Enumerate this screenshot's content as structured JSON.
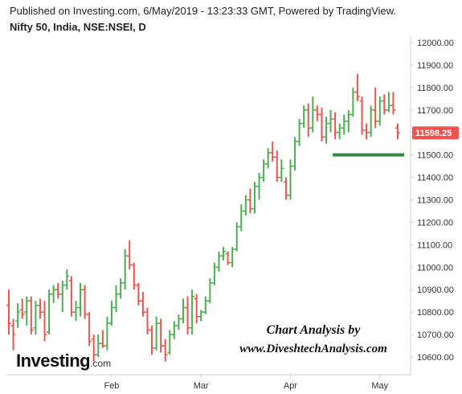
{
  "header": {
    "published": "Published on Investing.com, 6/May/2019 - 13:23:33 GMT, Powered by TradingView.",
    "instrument": "Nifty 50, India, NSE:NSEI, D"
  },
  "logo": {
    "name": "Investing",
    "suffix": ".com"
  },
  "watermark": {
    "line1": "Chart Analysis by",
    "line2": "www.DiveshtechAnalysis.com"
  },
  "colors": {
    "up": "#4caf50",
    "down": "#ef5350",
    "support": "#2e8b3a",
    "price_badge": "#ef5350"
  },
  "chart_data": {
    "type": "ohlc-bar",
    "y_ticks": [
      "12000.00",
      "11900.00",
      "11800.00",
      "11700.00",
      "11600.00",
      "11500.00",
      "11400.00",
      "11300.00",
      "11200.00",
      "11100.00",
      "11000.00",
      "10900.00",
      "10800.00",
      "10700.00",
      "10600.00"
    ],
    "ylim": [
      10550,
      12020
    ],
    "x_ticks": [
      {
        "label": "Feb",
        "index": 23
      },
      {
        "label": "Mar",
        "index": 43
      },
      {
        "label": "Apr",
        "index": 63
      },
      {
        "label": "May",
        "index": 83
      }
    ],
    "last_price": "11598.25",
    "support_level": {
      "value": 11500,
      "from_index": 73,
      "to_index": 87
    },
    "bars": [
      {
        "o": 10830,
        "h": 10900,
        "l": 10700,
        "c": 10750
      },
      {
        "o": 10740,
        "h": 10770,
        "l": 10630,
        "c": 10700
      },
      {
        "o": 10760,
        "h": 10840,
        "l": 10730,
        "c": 10800
      },
      {
        "o": 10810,
        "h": 10860,
        "l": 10770,
        "c": 10790
      },
      {
        "o": 10800,
        "h": 10870,
        "l": 10740,
        "c": 10850
      },
      {
        "o": 10850,
        "h": 10870,
        "l": 10700,
        "c": 10720
      },
      {
        "o": 10730,
        "h": 10850,
        "l": 10700,
        "c": 10830
      },
      {
        "o": 10830,
        "h": 10860,
        "l": 10770,
        "c": 10800
      },
      {
        "o": 10800,
        "h": 10850,
        "l": 10670,
        "c": 10700
      },
      {
        "o": 10710,
        "h": 10900,
        "l": 10700,
        "c": 10880
      },
      {
        "o": 10880,
        "h": 10920,
        "l": 10840,
        "c": 10900
      },
      {
        "o": 10900,
        "h": 10930,
        "l": 10860,
        "c": 10880
      },
      {
        "o": 10880,
        "h": 10940,
        "l": 10800,
        "c": 10920
      },
      {
        "o": 10920,
        "h": 10990,
        "l": 10900,
        "c": 10960
      },
      {
        "o": 10940,
        "h": 10960,
        "l": 10780,
        "c": 10800
      },
      {
        "o": 10800,
        "h": 10850,
        "l": 10760,
        "c": 10820
      },
      {
        "o": 10820,
        "h": 10930,
        "l": 10780,
        "c": 10900
      },
      {
        "o": 10900,
        "h": 10920,
        "l": 10770,
        "c": 10790
      },
      {
        "o": 10790,
        "h": 10800,
        "l": 10650,
        "c": 10670
      },
      {
        "o": 10680,
        "h": 10700,
        "l": 10580,
        "c": 10610
      },
      {
        "o": 10610,
        "h": 10700,
        "l": 10600,
        "c": 10660
      },
      {
        "o": 10660,
        "h": 10720,
        "l": 10640,
        "c": 10650
      },
      {
        "o": 10650,
        "h": 10780,
        "l": 10630,
        "c": 10750
      },
      {
        "o": 10750,
        "h": 10850,
        "l": 10740,
        "c": 10820
      },
      {
        "o": 10820,
        "h": 10920,
        "l": 10800,
        "c": 10880
      },
      {
        "o": 10880,
        "h": 10950,
        "l": 10860,
        "c": 10930
      },
      {
        "o": 10930,
        "h": 11080,
        "l": 10900,
        "c": 11050
      },
      {
        "o": 11050,
        "h": 11120,
        "l": 10990,
        "c": 11010
      },
      {
        "o": 11010,
        "h": 11020,
        "l": 10900,
        "c": 10920
      },
      {
        "o": 10920,
        "h": 10930,
        "l": 10830,
        "c": 10850
      },
      {
        "o": 10850,
        "h": 10890,
        "l": 10780,
        "c": 10800
      },
      {
        "o": 10800,
        "h": 10820,
        "l": 10700,
        "c": 10720
      },
      {
        "o": 10720,
        "h": 10740,
        "l": 10610,
        "c": 10640
      },
      {
        "o": 10640,
        "h": 10780,
        "l": 10630,
        "c": 10750
      },
      {
        "o": 10750,
        "h": 10770,
        "l": 10620,
        "c": 10650
      },
      {
        "o": 10650,
        "h": 10680,
        "l": 10580,
        "c": 10610
      },
      {
        "o": 10620,
        "h": 10720,
        "l": 10610,
        "c": 10700
      },
      {
        "o": 10700,
        "h": 10760,
        "l": 10680,
        "c": 10740
      },
      {
        "o": 10740,
        "h": 10790,
        "l": 10720,
        "c": 10770
      },
      {
        "o": 10770,
        "h": 10860,
        "l": 10750,
        "c": 10820
      },
      {
        "o": 10820,
        "h": 10870,
        "l": 10700,
        "c": 10730
      },
      {
        "o": 10730,
        "h": 10900,
        "l": 10700,
        "c": 10870
      },
      {
        "o": 10860,
        "h": 10880,
        "l": 10750,
        "c": 10780
      },
      {
        "o": 10780,
        "h": 10810,
        "l": 10760,
        "c": 10800
      },
      {
        "o": 10800,
        "h": 10870,
        "l": 10790,
        "c": 10850
      },
      {
        "o": 10850,
        "h": 10950,
        "l": 10840,
        "c": 10930
      },
      {
        "o": 10930,
        "h": 11020,
        "l": 10920,
        "c": 11000
      },
      {
        "o": 11000,
        "h": 11070,
        "l": 10980,
        "c": 11050
      },
      {
        "o": 11050,
        "h": 11090,
        "l": 11030,
        "c": 11070
      },
      {
        "o": 11060,
        "h": 11070,
        "l": 11010,
        "c": 11020
      },
      {
        "o": 11020,
        "h": 11090,
        "l": 11000,
        "c": 11080
      },
      {
        "o": 11080,
        "h": 11200,
        "l": 11070,
        "c": 11180
      },
      {
        "o": 11180,
        "h": 11280,
        "l": 11160,
        "c": 11250
      },
      {
        "o": 11250,
        "h": 11320,
        "l": 11230,
        "c": 11300
      },
      {
        "o": 11300,
        "h": 11350,
        "l": 11240,
        "c": 11260
      },
      {
        "o": 11260,
        "h": 11380,
        "l": 11240,
        "c": 11360
      },
      {
        "o": 11360,
        "h": 11420,
        "l": 11300,
        "c": 11400
      },
      {
        "o": 11400,
        "h": 11480,
        "l": 11380,
        "c": 11460
      },
      {
        "o": 11460,
        "h": 11530,
        "l": 11440,
        "c": 11510
      },
      {
        "o": 11510,
        "h": 11560,
        "l": 11470,
        "c": 11490
      },
      {
        "o": 11490,
        "h": 11520,
        "l": 11380,
        "c": 11400
      },
      {
        "o": 11400,
        "h": 11480,
        "l": 11380,
        "c": 11440
      },
      {
        "o": 11380,
        "h": 11400,
        "l": 11300,
        "c": 11320
      },
      {
        "o": 11320,
        "h": 11480,
        "l": 11300,
        "c": 11450
      },
      {
        "o": 11450,
        "h": 11580,
        "l": 11430,
        "c": 11560
      },
      {
        "o": 11560,
        "h": 11660,
        "l": 11540,
        "c": 11640
      },
      {
        "o": 11640,
        "h": 11720,
        "l": 11620,
        "c": 11700
      },
      {
        "o": 11700,
        "h": 11730,
        "l": 11580,
        "c": 11620
      },
      {
        "o": 11620,
        "h": 11760,
        "l": 11600,
        "c": 11700
      },
      {
        "o": 11700,
        "h": 11720,
        "l": 11650,
        "c": 11680
      },
      {
        "o": 11680,
        "h": 11710,
        "l": 11560,
        "c": 11580
      },
      {
        "o": 11580,
        "h": 11670,
        "l": 11550,
        "c": 11640
      },
      {
        "o": 11640,
        "h": 11700,
        "l": 11600,
        "c": 11660
      },
      {
        "o": 11660,
        "h": 11690,
        "l": 11570,
        "c": 11600
      },
      {
        "o": 11600,
        "h": 11640,
        "l": 11570,
        "c": 11620
      },
      {
        "o": 11620,
        "h": 11680,
        "l": 11590,
        "c": 11650
      },
      {
        "o": 11650,
        "h": 11700,
        "l": 11600,
        "c": 11680
      },
      {
        "o": 11680,
        "h": 11800,
        "l": 11670,
        "c": 11780
      },
      {
        "o": 11780,
        "h": 11860,
        "l": 11740,
        "c": 11760
      },
      {
        "o": 11740,
        "h": 11760,
        "l": 11590,
        "c": 11610
      },
      {
        "o": 11610,
        "h": 11640,
        "l": 11570,
        "c": 11600
      },
      {
        "o": 11600,
        "h": 11720,
        "l": 11580,
        "c": 11700
      },
      {
        "o": 11700,
        "h": 11800,
        "l": 11620,
        "c": 11650
      },
      {
        "o": 11650,
        "h": 11760,
        "l": 11630,
        "c": 11740
      },
      {
        "o": 11740,
        "h": 11770,
        "l": 11680,
        "c": 11700
      },
      {
        "o": 11700,
        "h": 11780,
        "l": 11690,
        "c": 11720
      },
      {
        "o": 11720,
        "h": 11780,
        "l": 11680,
        "c": 11700
      },
      {
        "o": 11620,
        "h": 11640,
        "l": 11570,
        "c": 11598.25
      }
    ]
  }
}
